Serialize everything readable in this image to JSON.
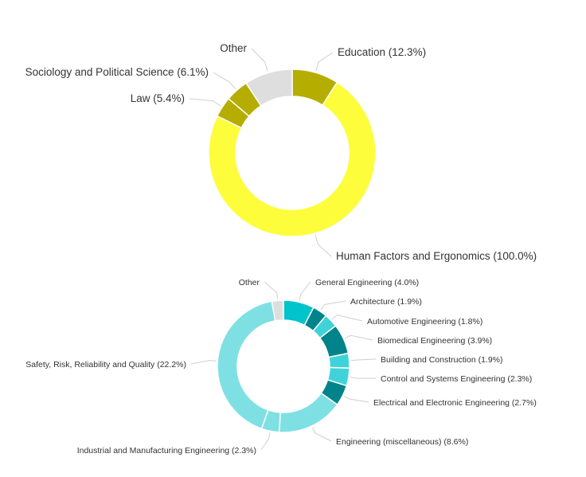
{
  "chart_data": [
    {
      "type": "pie",
      "donut": true,
      "categories": [
        "Education (12.3%)",
        "Human Factors and Ergonomics (100.0%)",
        "Law (5.4%)",
        "Sociology and Political Science (6.1%)",
        "Other"
      ],
      "values": [
        12.3,
        100.0,
        5.4,
        6.1,
        12.7
      ],
      "colors": [
        "#b5ad00",
        "#fdfd3c",
        "#b5ad00",
        "#b5ad00",
        "#dedede"
      ]
    },
    {
      "type": "pie",
      "donut": true,
      "categories": [
        "General Engineering (4.0%)",
        "Architecture (1.9%)",
        "Automotive Engineering (1.8%)",
        "Biomedical Engineering (3.9%)",
        "Building and Construction (1.9%)",
        "Control and Systems Engineering (2.3%)",
        "Electrical and Electronic Engineering (2.7%)",
        "Engineering (miscellaneous) (8.6%)",
        "Industrial and Manufacturing Engineering (2.3%)",
        "Safety, Risk, Reliability and Quality (22.2%)",
        "Other"
      ],
      "values": [
        4.0,
        1.9,
        1.8,
        3.9,
        1.9,
        2.3,
        2.7,
        8.6,
        2.3,
        22.2,
        1.5
      ],
      "colors": [
        "#00c4cb",
        "#00838a",
        "#3fd3d9",
        "#00838a",
        "#3fd3d9",
        "#3fd3d9",
        "#00838a",
        "#7fe0e4",
        "#7fe0e4",
        "#7fe0e4",
        "#dedede"
      ]
    }
  ]
}
